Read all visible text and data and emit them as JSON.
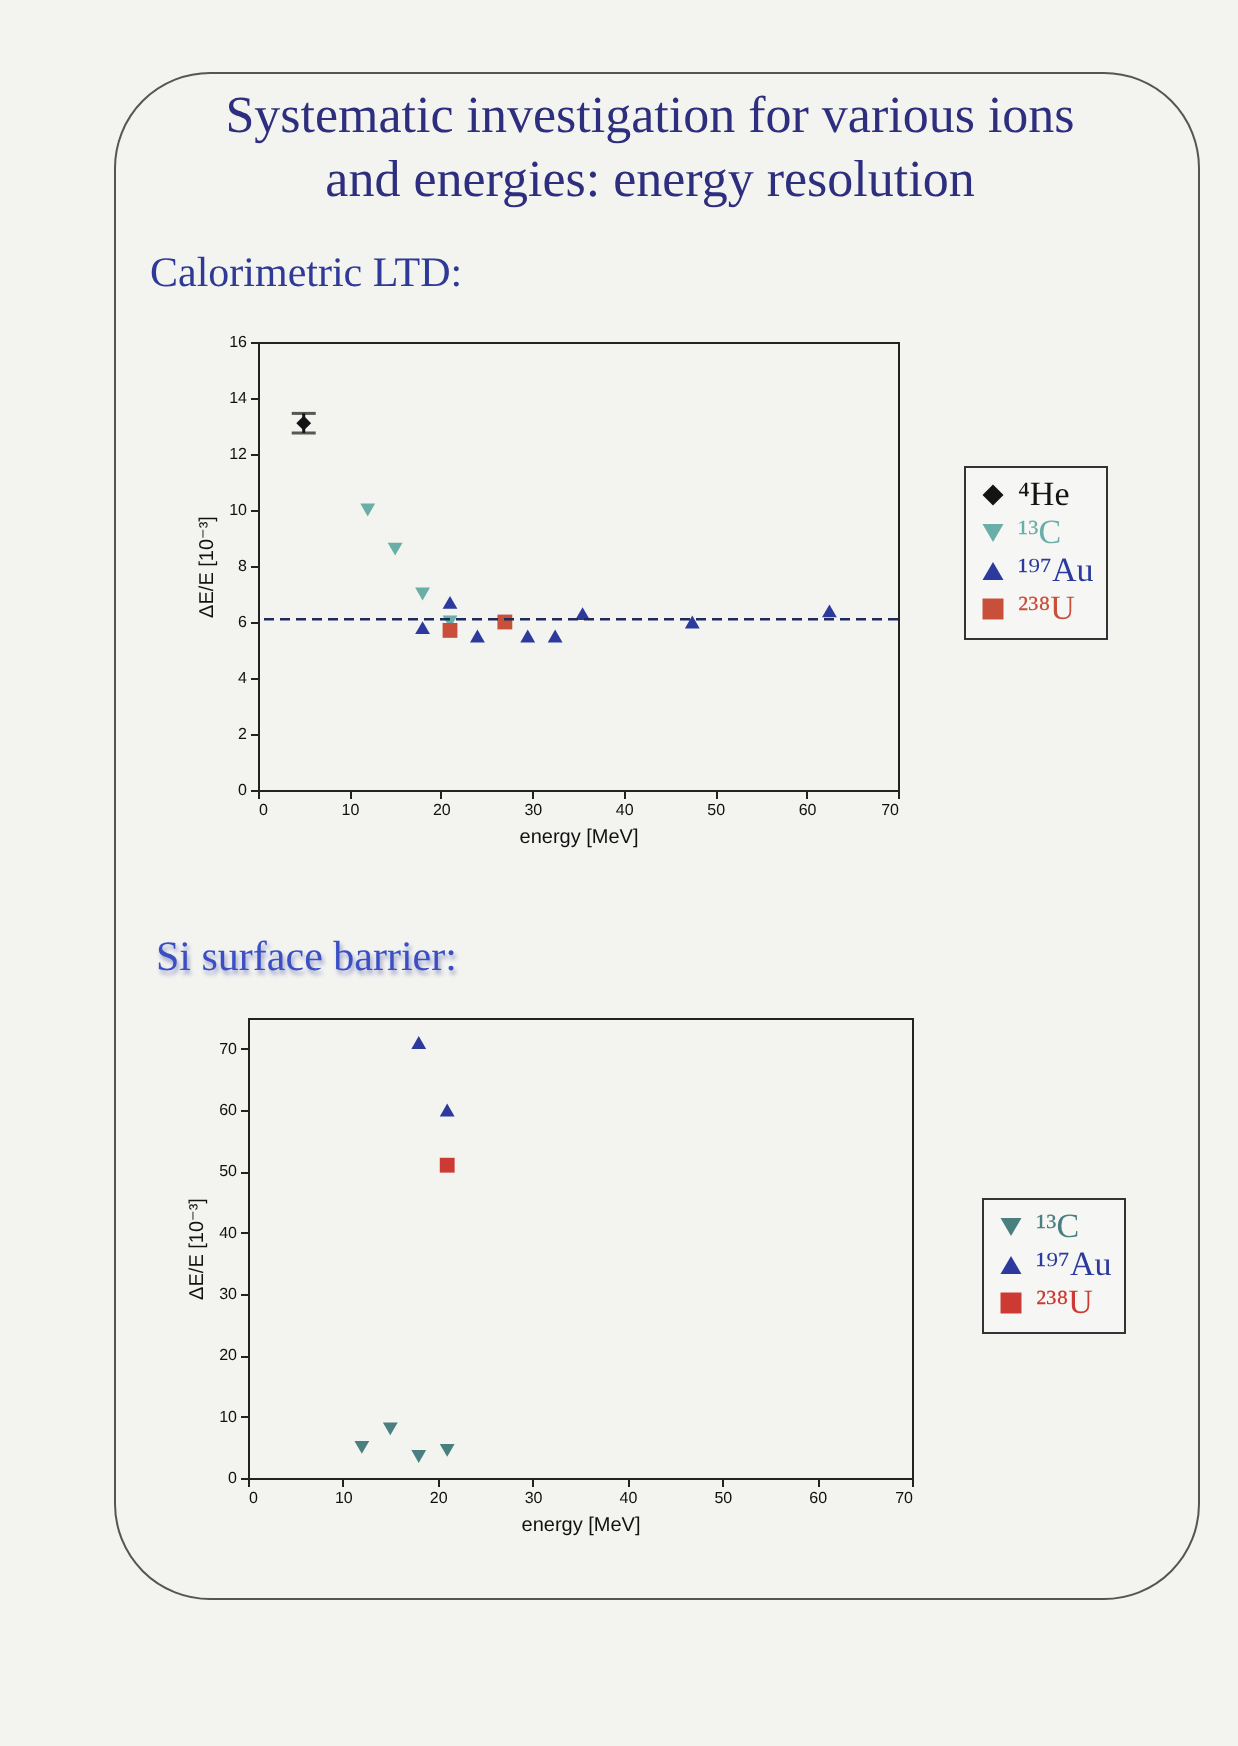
{
  "chart_data": [
    {
      "type": "scatter",
      "title": "Systematic investigation for various ions and energies: energy resolution",
      "subtitle": "Calorimetric LTD:",
      "xlabel": "energy [MeV]",
      "ylabel": "ΔE/E [10⁻³]",
      "xlim": [
        0,
        70
      ],
      "xticks": [
        0,
        10,
        20,
        30,
        40,
        50,
        60,
        70
      ],
      "ylim": [
        0,
        16
      ],
      "yticks": [
        0,
        2,
        4,
        6,
        8,
        10,
        12,
        14,
        16
      ],
      "legend": "right",
      "series": [
        {
          "name": "⁴He",
          "color": "#141414",
          "marker": "diamond",
          "x": [
            5
          ],
          "values": [
            13.1
          ],
          "errors": [
            0.35
          ]
        },
        {
          "name": "¹³C",
          "color": "#6aaea8",
          "marker": "triangle-down",
          "x": [
            12,
            15,
            18,
            21
          ],
          "values": [
            10.0,
            8.6,
            7.0,
            6.0
          ]
        },
        {
          "name": "¹⁹⁷Au",
          "color": "#2b3a9c",
          "marker": "triangle",
          "x": [
            18,
            21,
            24,
            29.5,
            32.5,
            35.5,
            47.5,
            62.5
          ],
          "values": [
            5.8,
            6.7,
            5.5,
            5.5,
            5.5,
            6.3,
            6.0,
            6.4
          ]
        },
        {
          "name": "²³⁸U",
          "color": "#c8503a",
          "marker": "square",
          "x": [
            21,
            27
          ],
          "values": [
            5.7,
            6.0
          ]
        }
      ],
      "ref_lines": [
        {
          "axis": "y",
          "value": 6.1,
          "color": "#1c2a5c",
          "line_style": "dashed"
        }
      ]
    },
    {
      "type": "scatter",
      "title": "Si surface barrier:",
      "xlabel": "energy [MeV]",
      "ylabel": "ΔE/E [10⁻³]",
      "xlim": [
        0,
        70
      ],
      "xticks": [
        0,
        10,
        20,
        30,
        40,
        50,
        60,
        70
      ],
      "ylim": [
        0,
        75
      ],
      "yticks": [
        0,
        10,
        20,
        30,
        40,
        50,
        60,
        70
      ],
      "legend": "right",
      "series": [
        {
          "name": "¹³C",
          "color": "#4a7f7f",
          "marker": "triangle-down",
          "x": [
            12,
            15,
            18,
            21
          ],
          "values": [
            5,
            8,
            3.5,
            4.5
          ]
        },
        {
          "name": "¹⁹⁷Au",
          "color": "#2b3a9c",
          "marker": "triangle",
          "x": [
            18,
            21
          ],
          "values": [
            71,
            60
          ]
        },
        {
          "name": "²³⁸U",
          "color": "#cc3a33",
          "marker": "square",
          "x": [
            21
          ],
          "values": [
            51
          ]
        }
      ]
    }
  ]
}
